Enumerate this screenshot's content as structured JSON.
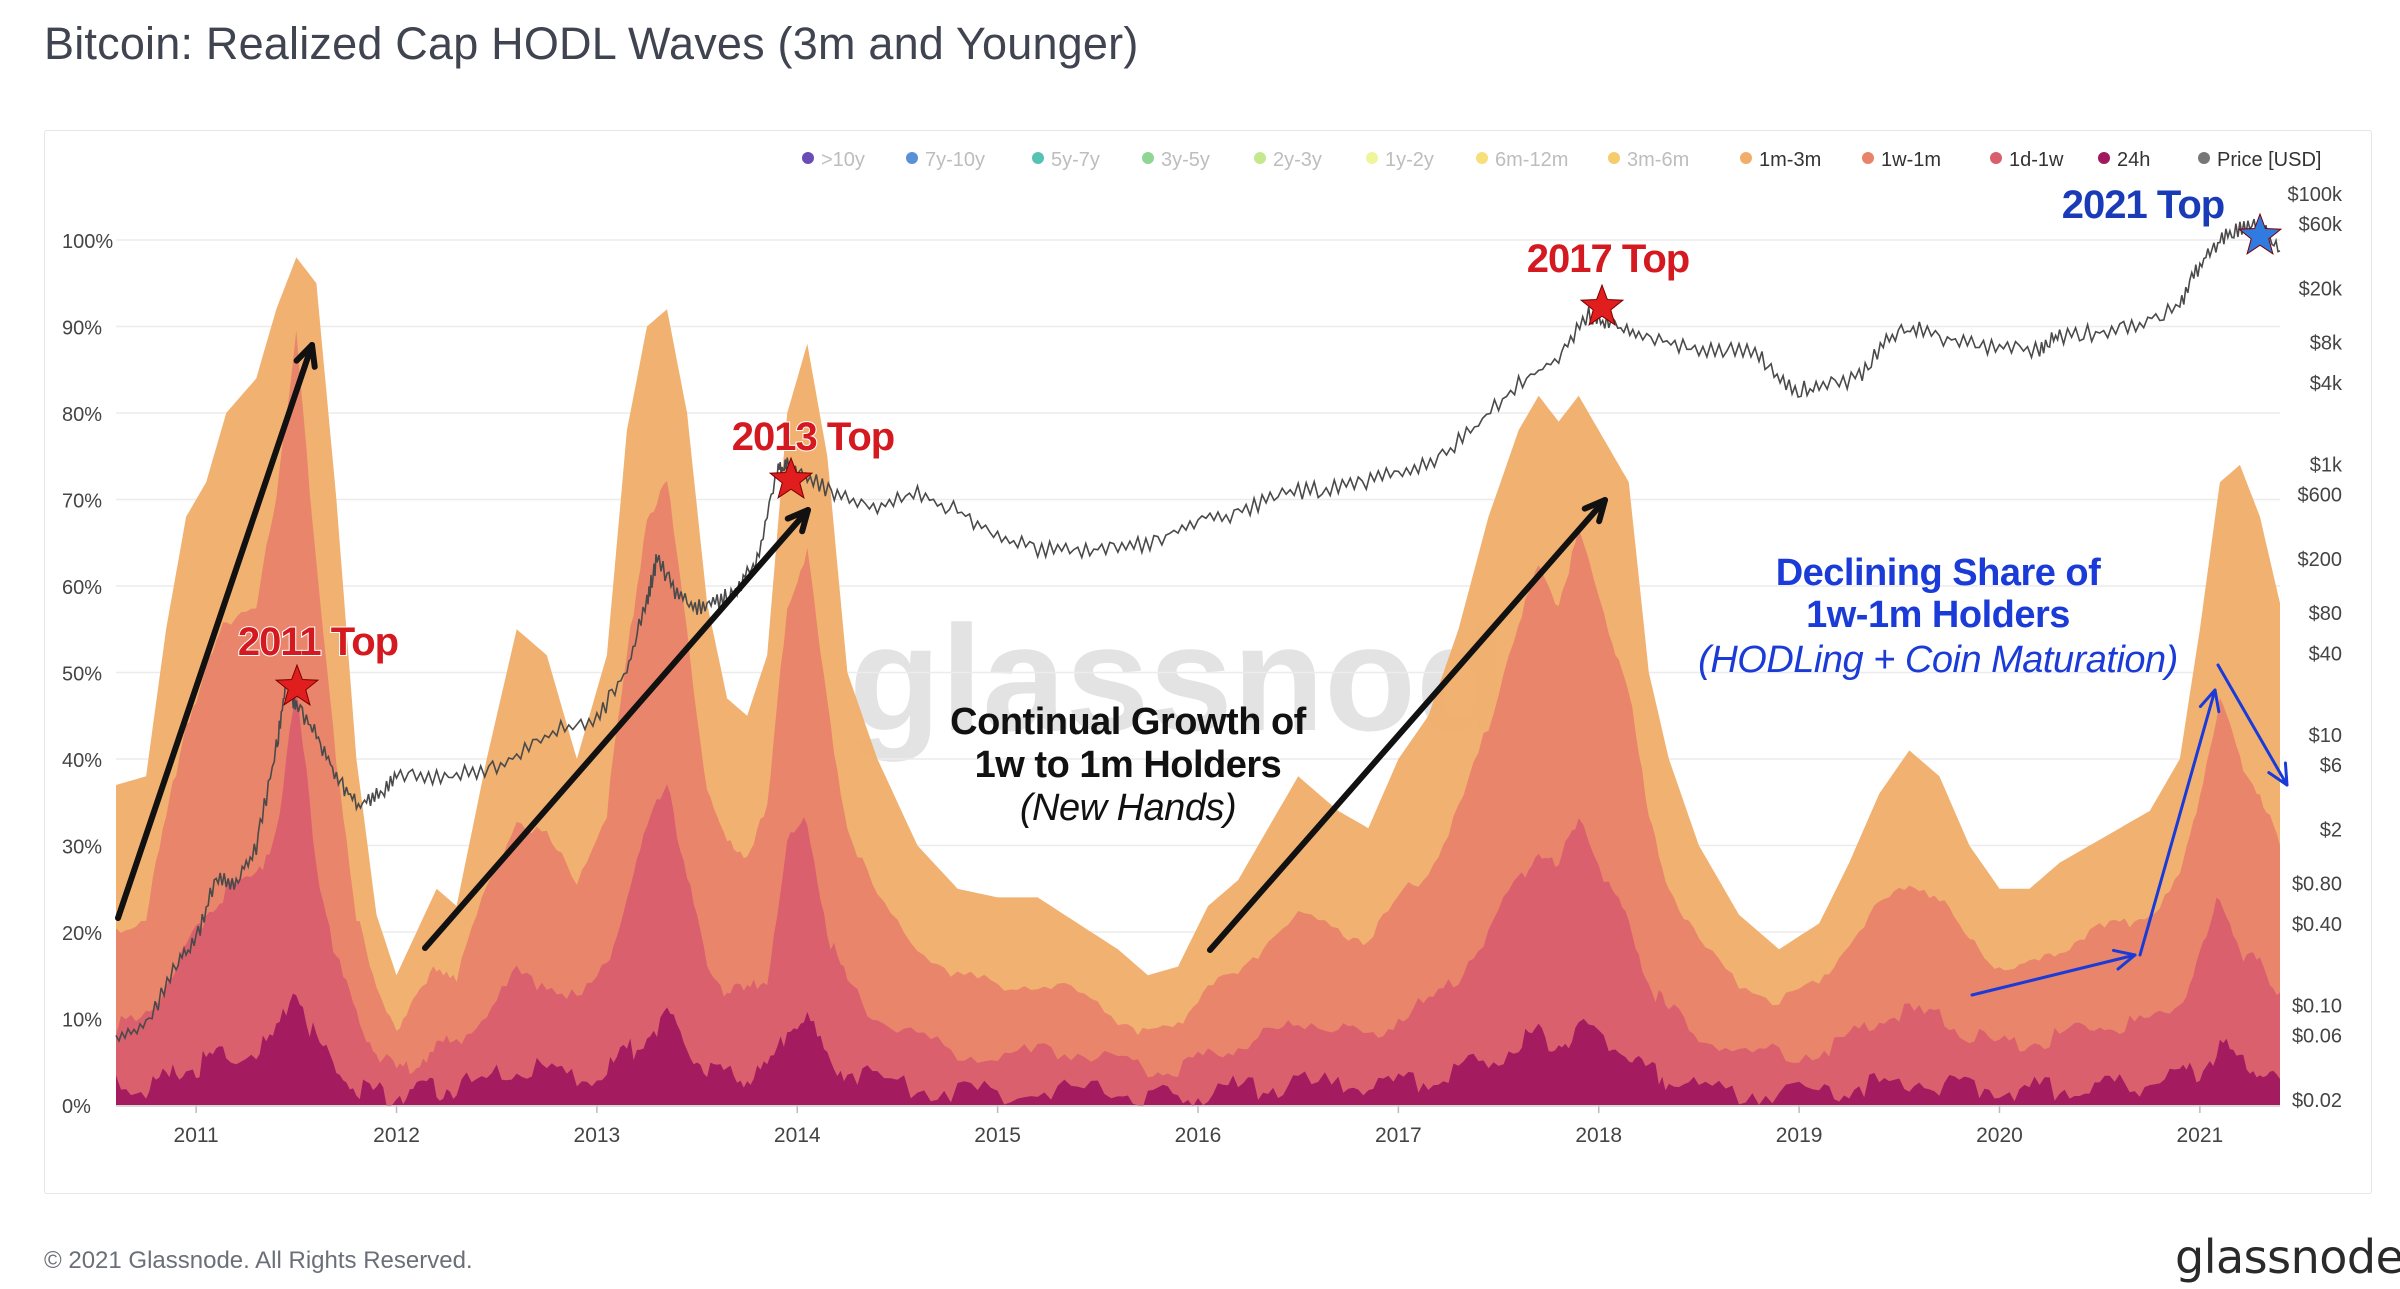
{
  "page": {
    "title": "Bitcoin: Realized Cap HODL Waves (3m and Younger)",
    "copyright": "© 2021 Glassnode. All Rights Reserved.",
    "brand": "glassnode",
    "watermark": "glassnode"
  },
  "chart_data": {
    "type": "area",
    "title": "Bitcoin: Realized Cap HODL Waves (3m and Younger)",
    "x_ticks": [
      "2011",
      "2012",
      "2013",
      "2014",
      "2015",
      "2016",
      "2017",
      "2018",
      "2019",
      "2020",
      "2021"
    ],
    "left_axis": {
      "ticks": [
        "0%",
        "10%",
        "20%",
        "30%",
        "40%",
        "50%",
        "60%",
        "70%",
        "80%",
        "90%",
        "100%"
      ],
      "ylim": [
        0,
        100
      ]
    },
    "right_axis": {
      "scale": "log",
      "ticks": [
        "$100k",
        "$60k",
        "$20k",
        "$8k",
        "$4k",
        "$1k",
        "$600",
        "$200",
        "$80",
        "$40",
        "$10",
        "$6",
        "$2",
        "$0.80",
        "$0.40",
        "$0.10",
        "$0.06",
        "$0.02"
      ]
    },
    "legend": [
      {
        "label": ">10y",
        "color": "#6a4cb5",
        "active": false
      },
      {
        "label": "7y-10y",
        "color": "#5b8fd6",
        "active": false
      },
      {
        "label": "5y-7y",
        "color": "#54c3b4",
        "active": false
      },
      {
        "label": "3y-5y",
        "color": "#8fd694",
        "active": false
      },
      {
        "label": "2y-3y",
        "color": "#c4e88d",
        "active": false
      },
      {
        "label": "1y-2y",
        "color": "#eef59a",
        "active": false
      },
      {
        "label": "6m-12m",
        "color": "#f7e07a",
        "active": false
      },
      {
        "label": "3m-6m",
        "color": "#f5cc6b",
        "active": false
      },
      {
        "label": "1m-3m",
        "color": "#f0ae6a",
        "active": true
      },
      {
        "label": "1w-1m",
        "color": "#e8836a",
        "active": true
      },
      {
        "label": "1d-1w",
        "color": "#d95f6e",
        "active": true
      },
      {
        "label": "24h",
        "color": "#a2185f",
        "active": true
      },
      {
        "label": "Price [USD]",
        "color": "#777777",
        "active": true
      }
    ],
    "x_range": [
      2010.6,
      2021.4
    ],
    "series": [
      {
        "name": "1m-3m",
        "color": "#f0ae6a",
        "x": [
          2010.6,
          2010.75,
          2010.85,
          2010.95,
          2011.05,
          2011.15,
          2011.3,
          2011.4,
          2011.5,
          2011.6,
          2011.7,
          2011.8,
          2011.9,
          2012.0,
          2012.1,
          2012.2,
          2012.3,
          2012.45,
          2012.6,
          2012.75,
          2012.9,
          2013.05,
          2013.15,
          2013.25,
          2013.35,
          2013.45,
          2013.55,
          2013.65,
          2013.75,
          2013.85,
          2013.95,
          2014.05,
          2014.15,
          2014.25,
          2014.4,
          2014.6,
          2014.8,
          2015.0,
          2015.2,
          2015.4,
          2015.6,
          2015.75,
          2015.9,
          2016.05,
          2016.2,
          2016.35,
          2016.5,
          2016.7,
          2016.85,
          2017.0,
          2017.15,
          2017.3,
          2017.45,
          2017.6,
          2017.7,
          2017.8,
          2017.9,
          2018.05,
          2018.15,
          2018.25,
          2018.35,
          2018.5,
          2018.7,
          2018.9,
          2019.1,
          2019.25,
          2019.4,
          2019.55,
          2019.7,
          2019.85,
          2020.0,
          2020.15,
          2020.3,
          2020.45,
          2020.6,
          2020.75,
          2020.9,
          2021.0,
          2021.1,
          2021.2,
          2021.3,
          2021.4
        ],
        "values": [
          37,
          38,
          55,
          68,
          72,
          80,
          84,
          92,
          98,
          95,
          70,
          40,
          22,
          15,
          20,
          25,
          23,
          40,
          55,
          52,
          40,
          52,
          78,
          90,
          92,
          80,
          58,
          47,
          45,
          52,
          80,
          88,
          75,
          50,
          40,
          30,
          25,
          24,
          24,
          21,
          18,
          15,
          16,
          23,
          26,
          32,
          38,
          34,
          32,
          40,
          45,
          55,
          68,
          78,
          82,
          79,
          82,
          76,
          72,
          50,
          40,
          30,
          22,
          18,
          21,
          28,
          36,
          41,
          38,
          30,
          25,
          25,
          28,
          30,
          32,
          34,
          40,
          55,
          72,
          74,
          68,
          58
        ]
      },
      {
        "name": "1w-1m",
        "color": "#e8836a",
        "x": [
          2010.6,
          2010.75,
          2010.85,
          2010.95,
          2011.05,
          2011.15,
          2011.3,
          2011.4,
          2011.5,
          2011.6,
          2011.7,
          2011.8,
          2011.9,
          2012.0,
          2012.1,
          2012.2,
          2012.3,
          2012.45,
          2012.6,
          2012.75,
          2012.9,
          2013.05,
          2013.15,
          2013.25,
          2013.35,
          2013.45,
          2013.55,
          2013.65,
          2013.75,
          2013.85,
          2013.95,
          2014.05,
          2014.15,
          2014.25,
          2014.4,
          2014.6,
          2014.8,
          2015.0,
          2015.2,
          2015.4,
          2015.6,
          2015.75,
          2015.9,
          2016.05,
          2016.2,
          2016.35,
          2016.5,
          2016.7,
          2016.85,
          2017.0,
          2017.15,
          2017.3,
          2017.45,
          2017.6,
          2017.7,
          2017.8,
          2017.9,
          2018.05,
          2018.15,
          2018.25,
          2018.35,
          2018.5,
          2018.7,
          2018.9,
          2019.1,
          2019.25,
          2019.4,
          2019.55,
          2019.7,
          2019.85,
          2020.0,
          2020.15,
          2020.3,
          2020.45,
          2020.6,
          2020.75,
          2020.9,
          2021.0,
          2021.1,
          2021.2,
          2021.3,
          2021.4
        ],
        "values": [
          20,
          22,
          33,
          44,
          50,
          56,
          58,
          70,
          90,
          62,
          40,
          22,
          13,
          9,
          12,
          16,
          15,
          25,
          33,
          31,
          26,
          34,
          52,
          68,
          72,
          55,
          36,
          30,
          29,
          34,
          58,
          64,
          46,
          32,
          24,
          18,
          15,
          14,
          14,
          13,
          10,
          8,
          9,
          14,
          15,
          19,
          22,
          20,
          19,
          24,
          27,
          34,
          44,
          56,
          62,
          58,
          66,
          55,
          48,
          33,
          25,
          19,
          14,
          12,
          14,
          19,
          23,
          26,
          24,
          19,
          16,
          16,
          18,
          20,
          21,
          22,
          26,
          36,
          47,
          40,
          36,
          30
        ]
      },
      {
        "name": "1d-1w",
        "color": "#d95f6e",
        "x": [
          2010.6,
          2010.75,
          2010.85,
          2010.95,
          2011.05,
          2011.15,
          2011.3,
          2011.4,
          2011.5,
          2011.6,
          2011.7,
          2011.8,
          2011.9,
          2012.0,
          2012.1,
          2012.2,
          2012.3,
          2012.45,
          2012.6,
          2012.75,
          2012.9,
          2013.05,
          2013.15,
          2013.25,
          2013.35,
          2013.45,
          2013.55,
          2013.65,
          2013.75,
          2013.85,
          2013.95,
          2014.05,
          2014.15,
          2014.25,
          2014.4,
          2014.6,
          2014.8,
          2015.0,
          2015.2,
          2015.4,
          2015.6,
          2015.75,
          2015.9,
          2016.05,
          2016.2,
          2016.35,
          2016.5,
          2016.7,
          2016.85,
          2017.0,
          2017.15,
          2017.3,
          2017.45,
          2017.6,
          2017.7,
          2017.8,
          2017.9,
          2018.05,
          2018.15,
          2018.25,
          2018.35,
          2018.5,
          2018.7,
          2018.9,
          2019.1,
          2019.25,
          2019.4,
          2019.55,
          2019.7,
          2019.85,
          2020.0,
          2020.15,
          2020.3,
          2020.45,
          2020.6,
          2020.75,
          2020.9,
          2021.0,
          2021.1,
          2021.2,
          2021.3,
          2021.4
        ],
        "values": [
          9,
          10,
          14,
          18,
          22,
          25,
          26,
          32,
          48,
          28,
          17,
          10,
          6,
          4,
          5,
          7,
          7,
          11,
          15,
          14,
          12,
          16,
          24,
          32,
          38,
          26,
          16,
          13,
          13,
          15,
          30,
          33,
          20,
          14,
          10,
          8,
          6,
          6,
          6,
          6,
          5,
          4,
          4,
          6,
          7,
          8,
          10,
          9,
          8,
          10,
          12,
          15,
          20,
          26,
          30,
          27,
          34,
          25,
          21,
          14,
          11,
          8,
          6,
          6,
          6,
          8,
          10,
          11,
          10,
          8,
          7,
          7,
          8,
          9,
          9,
          10,
          12,
          17,
          24,
          18,
          16,
          13
        ]
      },
      {
        "name": "24h",
        "color": "#a2185f",
        "x": [
          2010.6,
          2010.75,
          2010.85,
          2010.95,
          2011.05,
          2011.15,
          2011.3,
          2011.4,
          2011.5,
          2011.6,
          2011.7,
          2011.8,
          2011.9,
          2012.0,
          2012.1,
          2012.2,
          2012.3,
          2012.45,
          2012.6,
          2012.75,
          2012.9,
          2013.05,
          2013.15,
          2013.25,
          2013.35,
          2013.45,
          2013.55,
          2013.65,
          2013.75,
          2013.85,
          2013.95,
          2014.05,
          2014.15,
          2014.25,
          2014.4,
          2014.6,
          2014.8,
          2015.0,
          2015.2,
          2015.4,
          2015.6,
          2015.75,
          2015.9,
          2016.05,
          2016.2,
          2016.35,
          2016.5,
          2016.7,
          2016.85,
          2017.0,
          2017.15,
          2017.3,
          2017.45,
          2017.6,
          2017.7,
          2017.8,
          2017.9,
          2018.05,
          2018.15,
          2018.25,
          2018.35,
          2018.5,
          2018.7,
          2018.9,
          2019.1,
          2019.25,
          2019.4,
          2019.55,
          2019.7,
          2019.85,
          2020.0,
          2020.15,
          2020.3,
          2020.45,
          2020.6,
          2020.75,
          2020.9,
          2021.0,
          2021.1,
          2021.2,
          2021.3,
          2021.4
        ],
        "values": [
          2,
          2,
          3,
          4,
          5,
          6,
          6,
          8,
          14,
          7,
          4,
          2,
          1.5,
          1,
          1.5,
          2,
          2,
          3,
          4,
          4,
          3,
          4,
          6,
          8,
          10,
          7,
          4,
          3.5,
          3.5,
          4,
          9,
          10,
          5,
          4,
          3,
          2,
          1.5,
          1.5,
          1.5,
          1.5,
          1.2,
          1,
          1,
          1.5,
          2,
          2,
          2.5,
          2.2,
          2,
          2.5,
          3,
          4,
          5,
          7,
          8,
          7,
          9,
          7,
          6,
          4,
          3,
          2,
          1.5,
          1.5,
          1.5,
          2,
          2.5,
          3,
          2.5,
          2,
          1.8,
          1.8,
          2,
          2.2,
          2.2,
          2.5,
          3,
          4,
          7,
          5,
          4,
          3
        ]
      },
      {
        "name": "Price [USD]",
        "color": "#555555",
        "scale": "log",
        "x": [
          2010.6,
          2010.75,
          2010.9,
          2011.0,
          2011.1,
          2011.2,
          2011.3,
          2011.4,
          2011.45,
          2011.5,
          2011.6,
          2011.7,
          2011.8,
          2011.9,
          2012.0,
          2012.2,
          2012.4,
          2012.6,
          2012.8,
          2013.0,
          2013.15,
          2013.25,
          2013.3,
          2013.4,
          2013.5,
          2013.6,
          2013.7,
          2013.8,
          2013.9,
          2013.95,
          2014.05,
          2014.2,
          2014.4,
          2014.6,
          2014.8,
          2015.0,
          2015.2,
          2015.4,
          2015.6,
          2015.8,
          2016.0,
          2016.2,
          2016.4,
          2016.6,
          2016.8,
          2017.0,
          2017.2,
          2017.4,
          2017.6,
          2017.8,
          2017.95,
          2018.05,
          2018.2,
          2018.4,
          2018.6,
          2018.8,
          2018.95,
          2019.1,
          2019.3,
          2019.45,
          2019.6,
          2019.8,
          2020.0,
          2020.2,
          2020.3,
          2020.5,
          2020.7,
          2020.9,
          2021.0,
          2021.1,
          2021.2,
          2021.3,
          2021.4
        ],
        "values": [
          0.06,
          0.07,
          0.2,
          0.3,
          0.9,
          0.8,
          1.5,
          8,
          25,
          16,
          10,
          5,
          3,
          3.5,
          5,
          5,
          5.2,
          7,
          11,
          13,
          30,
          100,
          200,
          110,
          90,
          95,
          120,
          200,
          900,
          1000,
          800,
          600,
          500,
          600,
          450,
          300,
          230,
          240,
          230,
          280,
          400,
          430,
          600,
          650,
          700,
          900,
          1100,
          2000,
          4000,
          6000,
          13000,
          11000,
          9000,
          7500,
          7000,
          6500,
          3700,
          3600,
          4500,
          9000,
          10000,
          8000,
          7200,
          7000,
          9000,
          9500,
          11000,
          15000,
          30000,
          45000,
          55000,
          58000,
          38000
        ]
      }
    ],
    "annotations": [
      {
        "text": "2011 Top",
        "color": "#d41920",
        "star": "red"
      },
      {
        "text": "2013 Top",
        "color": "#d41920",
        "star": "red"
      },
      {
        "text": "2017 Top",
        "color": "#d41920",
        "star": "red"
      },
      {
        "text": "2021 Top",
        "color": "#1a3bb8",
        "star": "blue"
      },
      {
        "text": "Continual Growth of",
        "color": "#111111"
      },
      {
        "text": "1w to 1m Holders",
        "color": "#111111"
      },
      {
        "text": "(New Hands)",
        "color": "#111111"
      },
      {
        "text": "Declining Share of",
        "color": "#1a3bd8"
      },
      {
        "text": "1w-1m Holders",
        "color": "#1a3bd8"
      },
      {
        "text": "(HODLing + Coin Maturation)",
        "color": "#1a3bd8"
      }
    ]
  }
}
